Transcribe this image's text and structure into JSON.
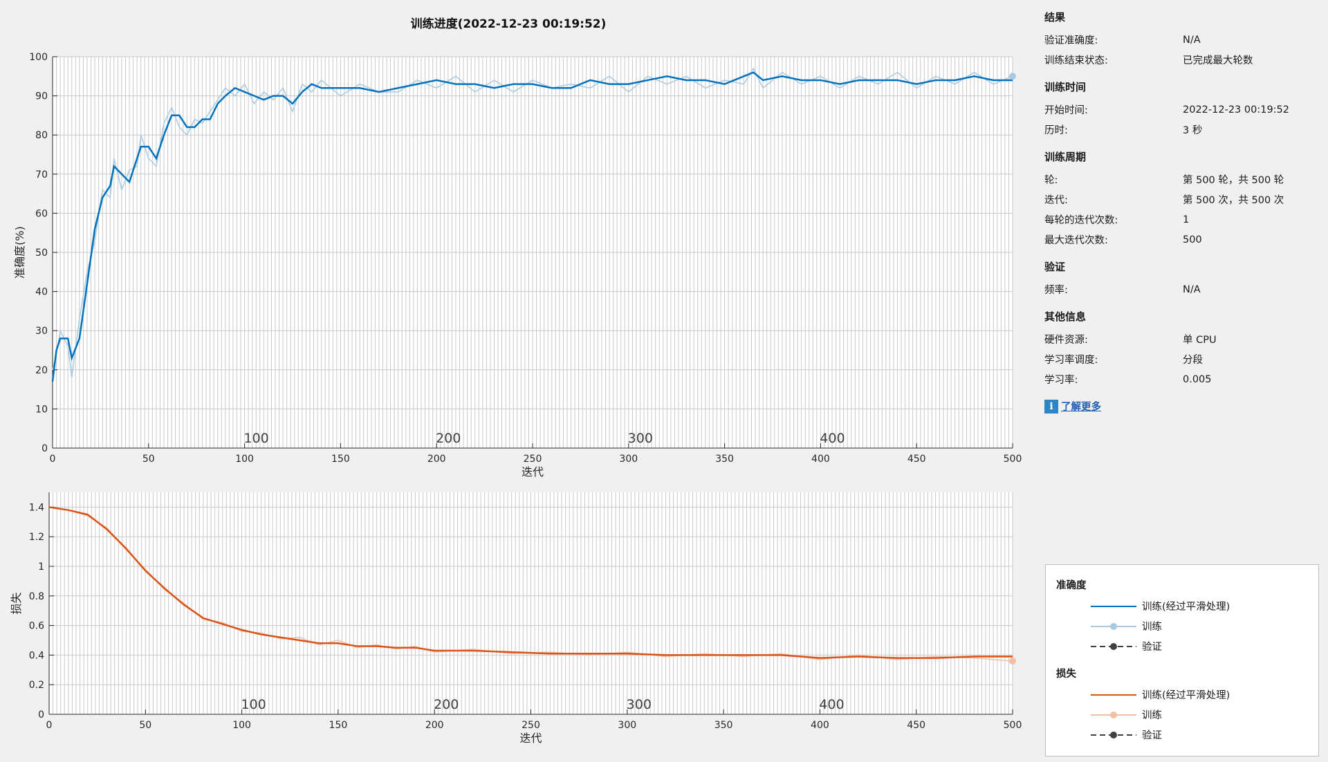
{
  "window": {
    "title": "训练进度(2022-12-23 00:19:52)"
  },
  "panel": {
    "results": {
      "title": "结果",
      "rows": [
        {
          "k": "验证准确度:",
          "v": "N/A"
        },
        {
          "k": "训练结束状态:",
          "v": "已完成最大轮数"
        }
      ]
    },
    "time": {
      "title": "训练时间",
      "rows": [
        {
          "k": "开始时间:",
          "v": "2022-12-23 00:19:52"
        },
        {
          "k": "历时:",
          "v": "3 秒"
        }
      ]
    },
    "cycle": {
      "title": "训练周期",
      "rows": [
        {
          "k": "轮:",
          "v": "第 500 轮，共 500 轮"
        },
        {
          "k": "迭代:",
          "v": "第 500 次，共 500 次"
        },
        {
          "k": "每轮的迭代次数:",
          "v": "1"
        },
        {
          "k": "最大迭代次数:",
          "v": "500"
        }
      ]
    },
    "validation": {
      "title": "验证",
      "rows": [
        {
          "k": "频率:",
          "v": "N/A"
        }
      ]
    },
    "other": {
      "title": "其他信息",
      "rows": [
        {
          "k": "硬件资源:",
          "v": "单 CPU"
        },
        {
          "k": "学习率调度:",
          "v": "分段"
        },
        {
          "k": "学习率:",
          "v": "0.005"
        }
      ]
    },
    "learn_more": "了解更多",
    "learn_more_icon": "info-icon"
  },
  "legend": {
    "accuracy_title": "准确度",
    "loss_title": "损失",
    "accuracy_items": [
      "训练(经过平滑处理)",
      "训练",
      "验证"
    ],
    "loss_items": [
      "训练(经过平滑处理)",
      "训练",
      "验证"
    ]
  },
  "colors": {
    "acc_smooth": "#0072bd",
    "acc_raw": "#a9c9e3",
    "loss_smooth": "#d95319",
    "loss_raw": "#f3bfa3",
    "validation": "#404040",
    "grid": "#c8c8c8"
  },
  "chart_data": [
    {
      "type": "line",
      "xlabel": "迭代",
      "ylabel": "准确度(%)",
      "xlim": [
        0,
        500
      ],
      "ylim": [
        0,
        100
      ],
      "xticks": [
        0,
        50,
        100,
        150,
        200,
        250,
        300,
        350,
        400,
        450,
        500
      ],
      "yticks": [
        0,
        10,
        20,
        30,
        40,
        50,
        60,
        70,
        80,
        90,
        100
      ],
      "epoch_labels": [
        100,
        200,
        300,
        400
      ],
      "grid": true,
      "series": [
        {
          "name": "训练(经过平滑处理)",
          "x": [
            0,
            2,
            4,
            8,
            10,
            14,
            18,
            22,
            26,
            30,
            32,
            36,
            40,
            44,
            46,
            50,
            54,
            58,
            62,
            66,
            70,
            74,
            78,
            82,
            86,
            90,
            95,
            100,
            105,
            110,
            115,
            120,
            125,
            130,
            135,
            140,
            150,
            160,
            170,
            180,
            190,
            200,
            210,
            220,
            230,
            240,
            250,
            260,
            270,
            280,
            290,
            300,
            310,
            320,
            330,
            340,
            350,
            360,
            365,
            370,
            380,
            390,
            400,
            410,
            420,
            430,
            440,
            450,
            460,
            470,
            480,
            490,
            500
          ],
          "y": [
            17,
            25,
            28,
            28,
            23,
            28,
            42,
            56,
            64,
            67,
            72,
            70,
            68,
            74,
            77,
            77,
            74,
            80,
            85,
            85,
            82,
            82,
            84,
            84,
            88,
            90,
            92,
            91,
            90,
            89,
            90,
            90,
            88,
            91,
            93,
            92,
            92,
            92,
            91,
            92,
            93,
            94,
            93,
            93,
            92,
            93,
            93,
            92,
            92,
            94,
            93,
            93,
            94,
            95,
            94,
            94,
            93,
            95,
            96,
            94,
            95,
            94,
            94,
            93,
            94,
            94,
            94,
            93,
            94,
            94,
            95,
            94,
            94
          ]
        },
        {
          "name": "训练",
          "x": [
            0,
            2,
            4,
            8,
            10,
            14,
            18,
            22,
            26,
            30,
            32,
            36,
            40,
            44,
            46,
            50,
            54,
            58,
            62,
            66,
            70,
            74,
            78,
            82,
            86,
            90,
            95,
            100,
            105,
            110,
            115,
            120,
            125,
            130,
            135,
            140,
            150,
            160,
            170,
            180,
            190,
            200,
            210,
            220,
            230,
            240,
            250,
            260,
            270,
            280,
            290,
            300,
            310,
            320,
            330,
            340,
            350,
            360,
            365,
            370,
            380,
            390,
            400,
            410,
            420,
            430,
            440,
            450,
            460,
            470,
            480,
            490,
            500
          ],
          "y": [
            20,
            24,
            30,
            26,
            18,
            33,
            45,
            53,
            66,
            64,
            74,
            66,
            71,
            72,
            80,
            74,
            72,
            83,
            87,
            82,
            80,
            84,
            83,
            86,
            89,
            92,
            90,
            93,
            88,
            91,
            89,
            92,
            86,
            93,
            91,
            94,
            90,
            93,
            91,
            91,
            94,
            92,
            95,
            91,
            94,
            91,
            94,
            92,
            93,
            92,
            95,
            91,
            95,
            93,
            95,
            92,
            94,
            93,
            97,
            92,
            96,
            93,
            95,
            92,
            95,
            93,
            96,
            92,
            95,
            93,
            96,
            93,
            95
          ]
        },
        {
          "name": "验证",
          "x": [],
          "y": []
        }
      ]
    },
    {
      "type": "line",
      "xlabel": "迭代",
      "ylabel": "损失",
      "xlim": [
        0,
        500
      ],
      "ylim": [
        0,
        1.5
      ],
      "xticks": [
        0,
        50,
        100,
        150,
        200,
        250,
        300,
        350,
        400,
        450,
        500
      ],
      "yticks": [
        0,
        0.2,
        0.4,
        0.6,
        0.8,
        1,
        1.2,
        1.4
      ],
      "epoch_labels": [
        100,
        200,
        300,
        400
      ],
      "grid": true,
      "series": [
        {
          "name": "训练(经过平滑处理)",
          "x": [
            0,
            10,
            20,
            30,
            40,
            50,
            60,
            70,
            80,
            90,
            100,
            110,
            120,
            130,
            140,
            150,
            160,
            170,
            180,
            190,
            200,
            220,
            240,
            260,
            280,
            300,
            320,
            340,
            360,
            380,
            400,
            420,
            440,
            460,
            480,
            500
          ],
          "y": [
            1.4,
            1.38,
            1.35,
            1.25,
            1.12,
            0.97,
            0.85,
            0.74,
            0.65,
            0.61,
            0.57,
            0.54,
            0.52,
            0.5,
            0.48,
            0.48,
            0.46,
            0.46,
            0.45,
            0.45,
            0.43,
            0.43,
            0.42,
            0.41,
            0.41,
            0.41,
            0.4,
            0.4,
            0.4,
            0.4,
            0.38,
            0.39,
            0.38,
            0.38,
            0.39,
            0.39
          ]
        },
        {
          "name": "训练",
          "x": [
            0,
            10,
            20,
            30,
            40,
            50,
            60,
            70,
            80,
            90,
            100,
            110,
            120,
            130,
            140,
            150,
            160,
            170,
            180,
            190,
            200,
            220,
            240,
            260,
            280,
            300,
            320,
            340,
            360,
            380,
            400,
            420,
            440,
            460,
            480,
            500
          ],
          "y": [
            1.4,
            1.38,
            1.34,
            1.26,
            1.11,
            0.98,
            0.84,
            0.75,
            0.64,
            0.62,
            0.56,
            0.55,
            0.51,
            0.52,
            0.47,
            0.5,
            0.45,
            0.47,
            0.44,
            0.46,
            0.42,
            0.44,
            0.41,
            0.42,
            0.4,
            0.42,
            0.39,
            0.41,
            0.39,
            0.41,
            0.37,
            0.4,
            0.37,
            0.39,
            0.38,
            0.36
          ]
        },
        {
          "name": "验证",
          "x": [],
          "y": []
        }
      ]
    }
  ]
}
